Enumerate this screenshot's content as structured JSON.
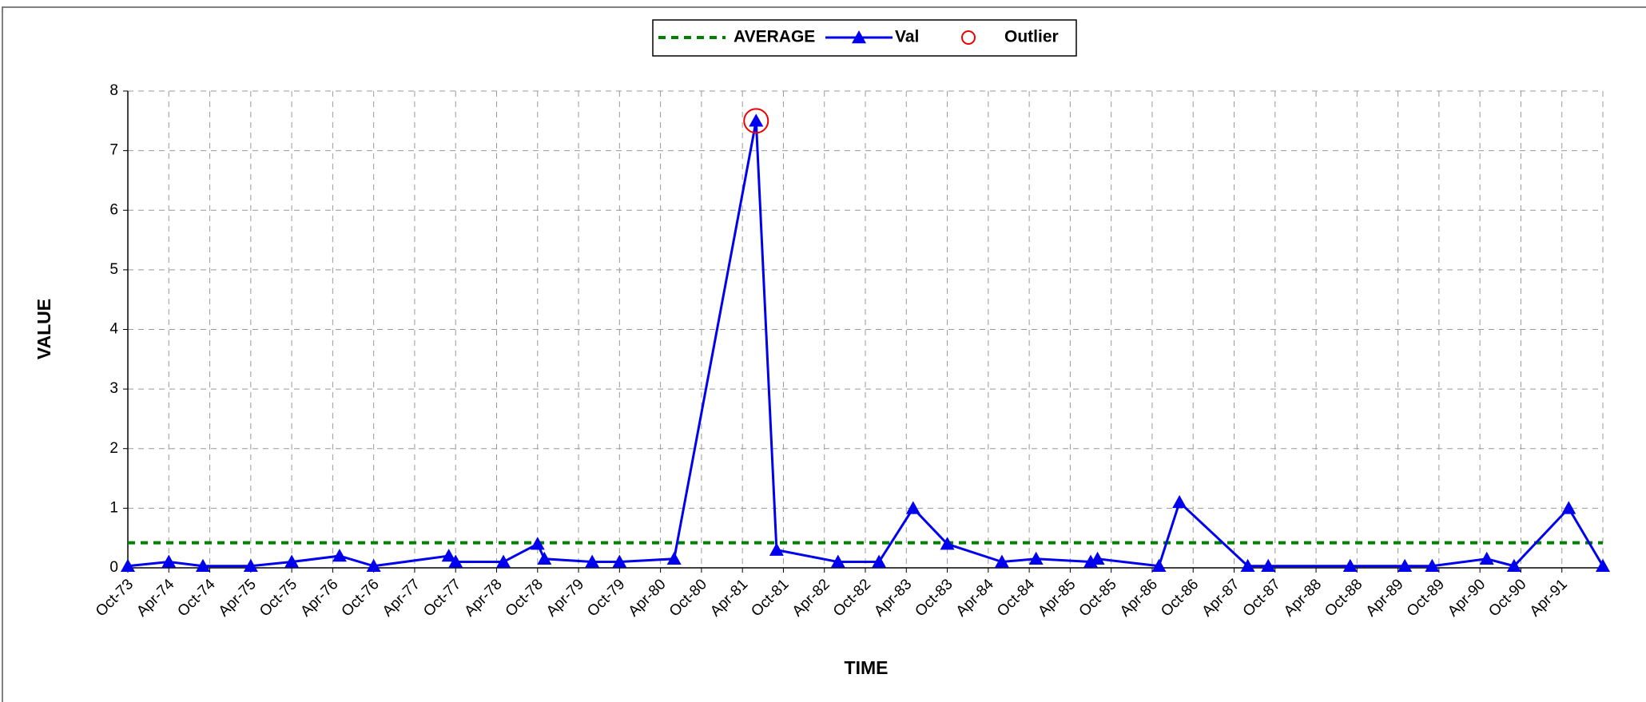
{
  "chart_data": {
    "type": "line",
    "x_label": "TIME",
    "y_label": "VALUE",
    "xlim": [
      "1973-10",
      "1991-10"
    ],
    "ylim": [
      0,
      8
    ],
    "yticks": [
      0,
      1,
      2,
      3,
      4,
      5,
      6,
      7,
      8
    ],
    "xticks": [
      {
        "value": "1973-10",
        "label": "Oct-73"
      },
      {
        "value": "1974-04",
        "label": "Apr-74"
      },
      {
        "value": "1974-10",
        "label": "Oct-74"
      },
      {
        "value": "1975-04",
        "label": "Apr-75"
      },
      {
        "value": "1975-10",
        "label": "Oct-75"
      },
      {
        "value": "1976-04",
        "label": "Apr-76"
      },
      {
        "value": "1976-10",
        "label": "Oct-76"
      },
      {
        "value": "1977-04",
        "label": "Apr-77"
      },
      {
        "value": "1977-10",
        "label": "Oct-77"
      },
      {
        "value": "1978-04",
        "label": "Apr-78"
      },
      {
        "value": "1978-10",
        "label": "Oct-78"
      },
      {
        "value": "1979-04",
        "label": "Apr-79"
      },
      {
        "value": "1979-10",
        "label": "Oct-79"
      },
      {
        "value": "1980-04",
        "label": "Apr-80"
      },
      {
        "value": "1980-10",
        "label": "Oct-80"
      },
      {
        "value": "1981-04",
        "label": "Apr-81"
      },
      {
        "value": "1981-10",
        "label": "Oct-81"
      },
      {
        "value": "1982-04",
        "label": "Apr-82"
      },
      {
        "value": "1982-10",
        "label": "Oct-82"
      },
      {
        "value": "1983-04",
        "label": "Apr-83"
      },
      {
        "value": "1983-10",
        "label": "Oct-83"
      },
      {
        "value": "1984-04",
        "label": "Apr-84"
      },
      {
        "value": "1984-10",
        "label": "Oct-84"
      },
      {
        "value": "1985-04",
        "label": "Apr-85"
      },
      {
        "value": "1985-10",
        "label": "Oct-85"
      },
      {
        "value": "1986-04",
        "label": "Apr-86"
      },
      {
        "value": "1986-10",
        "label": "Oct-86"
      },
      {
        "value": "1987-04",
        "label": "Apr-87"
      },
      {
        "value": "1987-10",
        "label": "Oct-87"
      },
      {
        "value": "1988-04",
        "label": "Apr-88"
      },
      {
        "value": "1988-10",
        "label": "Oct-88"
      },
      {
        "value": "1989-04",
        "label": "Apr-89"
      },
      {
        "value": "1989-10",
        "label": "Oct-89"
      },
      {
        "value": "1990-04",
        "label": "Apr-90"
      },
      {
        "value": "1990-10",
        "label": "Oct-90"
      },
      {
        "value": "1991-04",
        "label": "Apr-91"
      }
    ],
    "grid": true,
    "series": [
      {
        "name": "AVERAGE",
        "color": "#008000",
        "line": "dashed",
        "marker": "none",
        "x": [
          "1973-10",
          "1991-10"
        ],
        "values": [
          0.42,
          0.42
        ]
      },
      {
        "name": "Val",
        "color": "#0000ee",
        "line": "solid",
        "marker": "triangle",
        "x": [
          "1973-10",
          "1974-04",
          "1974-09",
          "1975-04",
          "1975-10",
          "1976-05",
          "1976-10",
          "1977-09",
          "1977-10",
          "1978-05",
          "1978-10",
          "1978-11",
          "1979-06",
          "1979-10",
          "1980-06",
          "1981-06",
          "1981-09",
          "1982-06",
          "1982-12",
          "1983-05",
          "1983-10",
          "1984-06",
          "1984-11",
          "1985-07",
          "1985-08",
          "1986-05",
          "1986-08",
          "1987-06",
          "1987-09",
          "1988-09",
          "1989-05",
          "1989-09",
          "1990-05",
          "1990-09",
          "1991-05",
          "1991-10"
        ],
        "values": [
          0.03,
          0.1,
          0.03,
          0.03,
          0.1,
          0.2,
          0.03,
          0.2,
          0.1,
          0.1,
          0.4,
          0.15,
          0.1,
          0.1,
          0.15,
          7.5,
          0.3,
          0.1,
          0.1,
          1.0,
          0.4,
          0.1,
          0.15,
          0.1,
          0.15,
          0.03,
          1.1,
          0.03,
          0.03,
          0.03,
          0.03,
          0.03,
          0.15,
          0.03,
          1.0,
          0.03
        ]
      },
      {
        "name": "Outlier",
        "color": "#ee0000",
        "line": "none",
        "marker": "circle",
        "x": [
          "1981-06"
        ],
        "values": [
          7.5
        ]
      }
    ]
  }
}
